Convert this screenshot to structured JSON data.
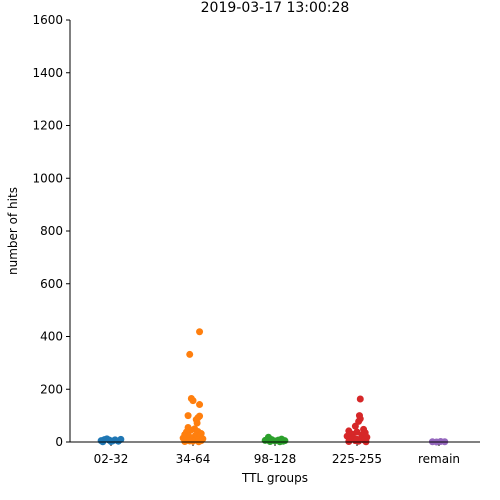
{
  "chart_data": {
    "type": "scatter",
    "title": "2019-03-17 13:00:28",
    "xlabel": "TTL groups",
    "ylabel": "number of hits",
    "ylim": [
      0,
      1600
    ],
    "yticks": [
      "0",
      "200",
      "400",
      "600",
      "800",
      "1000",
      "1200",
      "1400",
      "1600"
    ],
    "categories": [
      "02-32",
      "34-64",
      "98-128",
      "225-255",
      "remain"
    ],
    "grid": false,
    "legend": "none",
    "series": [
      {
        "color": "#1f77b4",
        "category": "02-32",
        "points": [
          {
            "x": -0.12,
            "y": 5
          },
          {
            "x": -0.08,
            "y": 9
          },
          {
            "x": -0.05,
            "y": 12
          },
          {
            "x": -0.02,
            "y": 7
          },
          {
            "x": 0.02,
            "y": 4
          },
          {
            "x": 0.05,
            "y": 8
          },
          {
            "x": 0.09,
            "y": 3
          },
          {
            "x": 0.12,
            "y": 10
          },
          {
            "x": 0.0,
            "y": 2
          },
          {
            "x": -0.1,
            "y": 1
          }
        ]
      },
      {
        "color": "#ff7f0e",
        "category": "34-64",
        "points": [
          {
            "x": 0.08,
            "y": 418
          },
          {
            "x": -0.04,
            "y": 332
          },
          {
            "x": -0.02,
            "y": 165
          },
          {
            "x": 0.0,
            "y": 157
          },
          {
            "x": 0.08,
            "y": 142
          },
          {
            "x": -0.06,
            "y": 100
          },
          {
            "x": 0.08,
            "y": 98
          },
          {
            "x": 0.06,
            "y": 92
          },
          {
            "x": 0.04,
            "y": 85
          },
          {
            "x": 0.05,
            "y": 72
          },
          {
            "x": -0.06,
            "y": 55
          },
          {
            "x": 0.02,
            "y": 50
          },
          {
            "x": -0.03,
            "y": 45
          },
          {
            "x": 0.06,
            "y": 40
          },
          {
            "x": -0.08,
            "y": 38
          },
          {
            "x": 0.1,
            "y": 32
          },
          {
            "x": -0.1,
            "y": 28
          },
          {
            "x": 0.03,
            "y": 25
          },
          {
            "x": -0.05,
            "y": 22
          },
          {
            "x": 0.08,
            "y": 18
          },
          {
            "x": -0.12,
            "y": 15
          },
          {
            "x": 0.12,
            "y": 12
          },
          {
            "x": -0.02,
            "y": 10
          },
          {
            "x": 0.05,
            "y": 8
          },
          {
            "x": -0.07,
            "y": 6
          },
          {
            "x": 0.1,
            "y": 5
          },
          {
            "x": 0.0,
            "y": 3
          },
          {
            "x": -0.1,
            "y": 2
          },
          {
            "x": 0.07,
            "y": 1
          },
          {
            "x": -0.04,
            "y": 4
          }
        ]
      },
      {
        "color": "#2ca02c",
        "category": "98-128",
        "points": [
          {
            "x": -0.08,
            "y": 18
          },
          {
            "x": -0.12,
            "y": 6
          },
          {
            "x": -0.04,
            "y": 9
          },
          {
            "x": 0.0,
            "y": 4
          },
          {
            "x": 0.04,
            "y": 7
          },
          {
            "x": 0.08,
            "y": 11
          },
          {
            "x": 0.12,
            "y": 5
          },
          {
            "x": -0.06,
            "y": 2
          },
          {
            "x": 0.06,
            "y": 1
          },
          {
            "x": 0.1,
            "y": 3
          }
        ]
      },
      {
        "color": "#d62728",
        "category": "225-255",
        "points": [
          {
            "x": 0.04,
            "y": 163
          },
          {
            "x": 0.03,
            "y": 100
          },
          {
            "x": 0.04,
            "y": 88
          },
          {
            "x": 0.02,
            "y": 78
          },
          {
            "x": -0.02,
            "y": 60
          },
          {
            "x": 0.08,
            "y": 48
          },
          {
            "x": -0.1,
            "y": 42
          },
          {
            "x": 0.0,
            "y": 38
          },
          {
            "x": 0.1,
            "y": 35
          },
          {
            "x": -0.06,
            "y": 30
          },
          {
            "x": 0.06,
            "y": 26
          },
          {
            "x": -0.12,
            "y": 22
          },
          {
            "x": 0.12,
            "y": 18
          },
          {
            "x": -0.04,
            "y": 15
          },
          {
            "x": 0.05,
            "y": 12
          },
          {
            "x": -0.08,
            "y": 9
          },
          {
            "x": 0.09,
            "y": 7
          },
          {
            "x": -0.02,
            "y": 5
          },
          {
            "x": 0.02,
            "y": 3
          },
          {
            "x": -0.1,
            "y": 2
          },
          {
            "x": 0.11,
            "y": 1
          },
          {
            "x": 0.0,
            "y": 10
          }
        ]
      },
      {
        "color": "#9467bd",
        "category": "remain",
        "points": [
          {
            "x": -0.08,
            "y": 1
          },
          {
            "x": -0.03,
            "y": 0
          },
          {
            "x": 0.02,
            "y": 2
          },
          {
            "x": 0.07,
            "y": 1
          }
        ]
      }
    ]
  }
}
